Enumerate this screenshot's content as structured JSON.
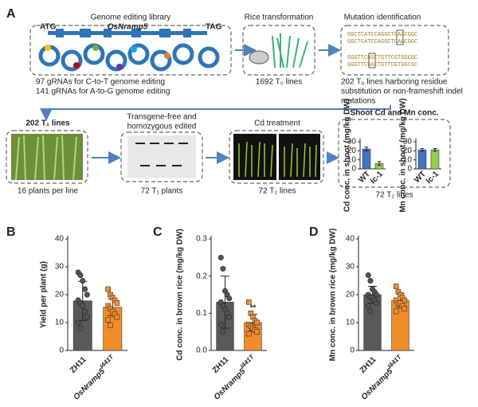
{
  "panel_labels": [
    "A",
    "B",
    "C",
    "D"
  ],
  "workflow": {
    "library": {
      "title": "Genome editing library",
      "start": "ATG",
      "gene": "OsNramp5",
      "end": "TAG",
      "caption": [
        "97 gRNAs  for C-to-T genome editing",
        "141 gRNAs for A-to-G genome editing"
      ]
    },
    "transformation": {
      "title": "Rice transformation",
      "caption": "1692 T₀ lines"
    },
    "mutation": {
      "title": "Mutation identification",
      "sequences": [
        "GGCTCATCCAGGCTCAACGGC",
        "GGCTCATCCAGGCTCAACGGC",
        "GGGTTCGGCTGTTCGTGGCGC",
        "GGGTTCGACTGTTCGTGGCGC"
      ],
      "caption": [
        "202 T₀ lines harboring residue",
        "substitution or non-frameshift indel",
        "mutations"
      ]
    },
    "t1_lines": {
      "title": "202 T₁ lines",
      "caption": "16 plants per line"
    },
    "transgene_free": {
      "title": [
        "Transgene-free and",
        "homozygous edited"
      ],
      "caption": "72 T₁ plants"
    },
    "cd_treatment": {
      "title": "Cd treatment",
      "caption": "72 T₂ lines"
    },
    "shoot": {
      "title": "Shoot Cd and Mn conc.",
      "caption": "72 T₂ lines"
    }
  },
  "chart_data": [
    {
      "type": "bar",
      "y_label": "Yield per plant (g)",
      "categories": [
        "ZH11",
        {
          "main": "OsNramp5",
          "sup": "I441T"
        }
      ],
      "values": [
        17.8,
        15.5
      ],
      "errors": [
        7,
        3
      ],
      "colors": [
        "#595959",
        "#f28c28"
      ],
      "points": [
        [
          28,
          27,
          25,
          22,
          20,
          18,
          17,
          16,
          14,
          12,
          10,
          8
        ],
        [
          22,
          20,
          19,
          18,
          17,
          16,
          15,
          14,
          13,
          12,
          11,
          9
        ]
      ],
      "ylim": [
        0,
        40
      ],
      "yticks": [
        0,
        10,
        20,
        30,
        40
      ]
    },
    {
      "type": "bar",
      "y_label": "Cd conc. in brown rice (mg/kg DW)",
      "categories": [
        "ZH11",
        {
          "main": "OsNramp5",
          "sup": "I441T"
        }
      ],
      "values": [
        0.13,
        0.075
      ],
      "errors": [
        0.07,
        0.022
      ],
      "colors": [
        "#595959",
        "#f28c28"
      ],
      "significance": [
        null,
        "**"
      ],
      "points": [
        [
          0.25,
          0.22,
          0.16,
          0.15,
          0.14,
          0.13,
          0.12,
          0.11,
          0.1,
          0.09,
          0.07,
          0.05
        ],
        [
          0.13,
          0.1,
          0.09,
          0.08,
          0.075,
          0.07,
          0.065,
          0.06,
          0.055,
          0.05,
          0.045
        ]
      ],
      "ylim": [
        0,
        0.3
      ],
      "yticks": [
        {
          "value": 0,
          "label": "0.0"
        },
        0.1,
        0.2,
        0.3
      ]
    },
    {
      "type": "bar",
      "y_label": "Mn conc. in brown rice (mg/kg DW)",
      "categories": [
        "ZH11",
        {
          "main": "OsNramp5",
          "sup": "I441T"
        }
      ],
      "values": [
        20,
        18
      ],
      "errors": [
        3,
        2.5
      ],
      "colors": [
        "#595959",
        "#f28c28"
      ],
      "points": [
        [
          27,
          25,
          22,
          21,
          20,
          20,
          19,
          19,
          18,
          17,
          16,
          14
        ],
        [
          23,
          21,
          20,
          19,
          18,
          18,
          17,
          17,
          16,
          15,
          14
        ]
      ],
      "ylim": [
        0,
        40
      ],
      "yticks": [
        0,
        10,
        20,
        30,
        40
      ]
    },
    {
      "type": "bar",
      "y_label": "Cd conc. in shoot (mg/kg DW)",
      "categories": [
        "WT",
        "Ic-1"
      ],
      "values": [
        22,
        6
      ],
      "errors": [
        2,
        2
      ],
      "colors": [
        "#4472c4",
        "#92d050"
      ],
      "ylim": [
        0,
        30
      ],
      "yticks": [
        0,
        10,
        20,
        30
      ]
    },
    {
      "type": "bar",
      "y_label": "Mn conc. in shoot (mg/kg DW)",
      "categories": [
        "WT",
        "Ic-1"
      ],
      "values": [
        21,
        21
      ],
      "errors": [
        1.5,
        1.5
      ],
      "colors": [
        "#4472c4",
        "#92d050"
      ],
      "ylim": [
        0,
        30
      ],
      "yticks": [
        0,
        10,
        20,
        30
      ]
    }
  ]
}
